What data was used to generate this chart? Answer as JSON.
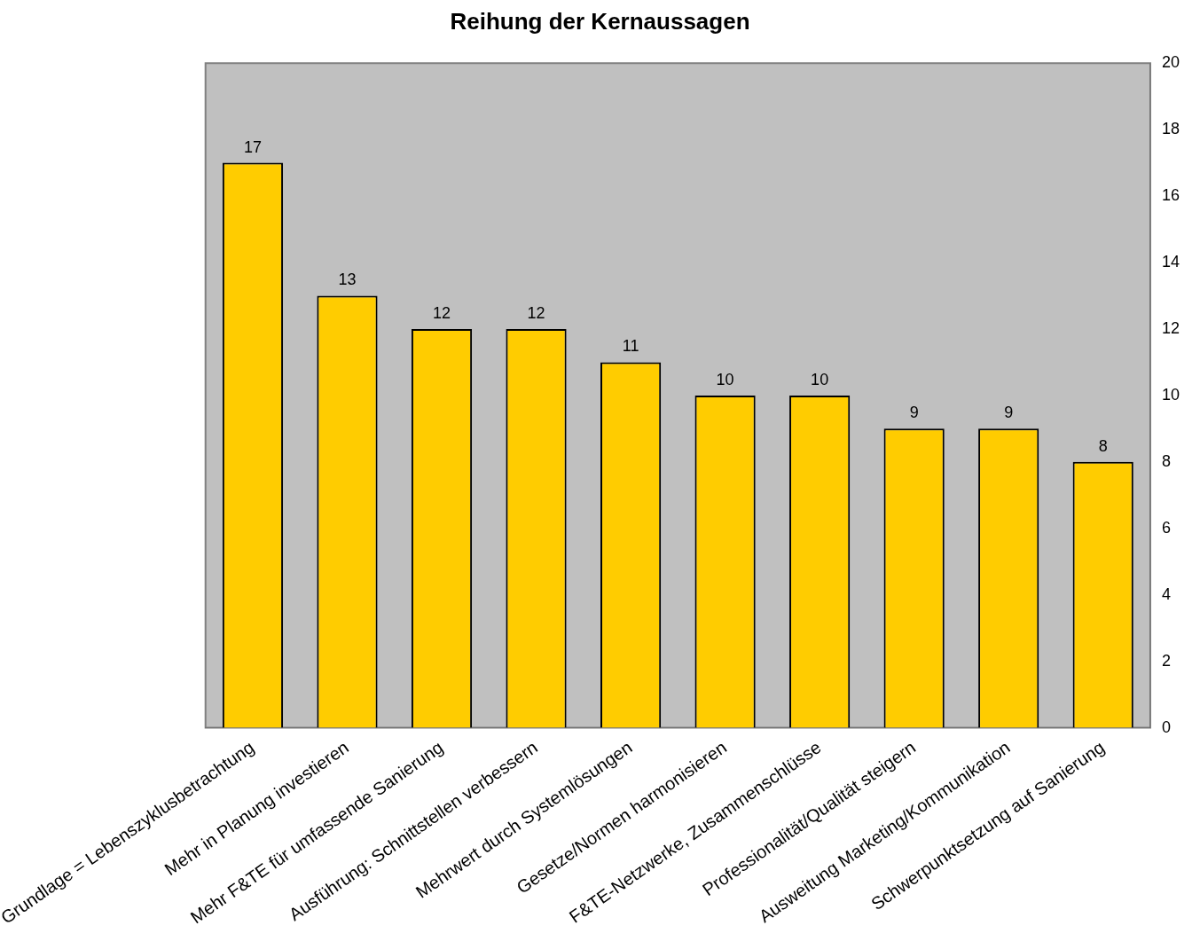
{
  "chart_data": {
    "type": "bar",
    "title": "Reihung der Kernaussagen",
    "categories": [
      "Grundlage = Lebenszyklusbetrachtung",
      "Mehr in Planung investieren",
      "Mehr F&TE für umfassende Sanierung",
      "Ausführung: Schnittstellen verbessern",
      "Mehrwert durch Systemlösungen",
      "Gesetze/Normen harmonisieren",
      "F&TE-Netzwerke, Zusammenschlüsse",
      "Professionalität/Qualität steigern",
      "Ausweitung Marketing/Kommunikation",
      "Schwerpunktsetzung auf Sanierung"
    ],
    "values": [
      17,
      13,
      12,
      12,
      11,
      10,
      10,
      9,
      9,
      8
    ],
    "color": "#ffcc00",
    "ylim": [
      0,
      20
    ],
    "yticks": [
      0,
      2,
      4,
      6,
      8,
      10,
      12,
      14,
      16,
      18,
      20
    ],
    "grid": false,
    "legend": false,
    "data_labels": true
  }
}
